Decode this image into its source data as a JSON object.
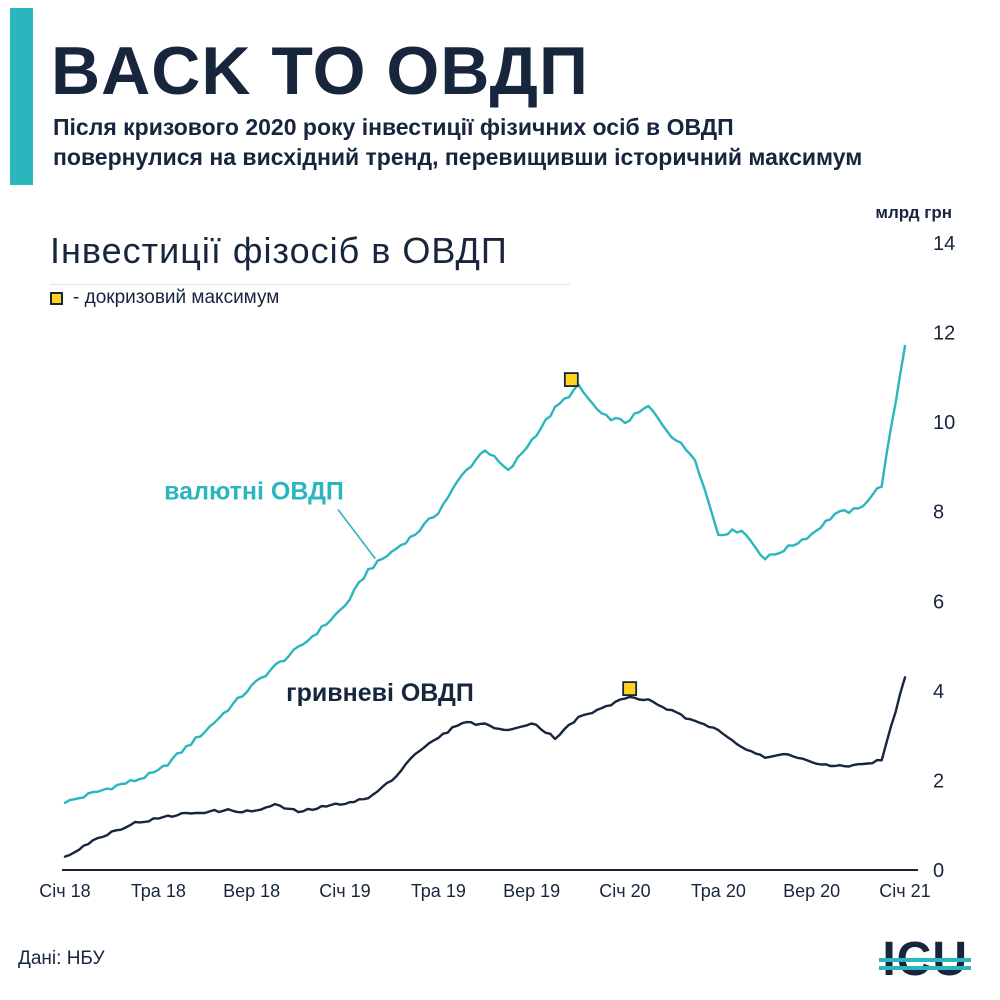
{
  "palette": {
    "ink": "#17253d",
    "teal": "#2bb6bd",
    "yellow": "#ffd51c",
    "underline": "#dfe3e8"
  },
  "header": {
    "title": "BACK TO ОВДП",
    "subtitle_line1": "Після кризового 2020 року інвестиції фізичних осіб в ОВДП",
    "subtitle_line2": "повернулися на висхідний тренд, перевищивши історичний максимум"
  },
  "chart_header": {
    "title": "Інвестиції фізосіб в ОВДП",
    "unit_label": "млрд грн",
    "legend_text": "- докризовий максимум"
  },
  "footer": {
    "source": "Дані: НБУ",
    "logo_text": "ICU"
  },
  "chart_data": {
    "type": "line",
    "title": "Інвестиції фізосіб в ОВДП",
    "ylabel": "млрд грн",
    "ylim": [
      0,
      14
    ],
    "yticks": [
      0,
      2,
      4,
      6,
      8,
      10,
      12,
      14
    ],
    "grid": false,
    "legend_position": "top-left",
    "x_axis": {
      "months_total": 36,
      "tick_months": [
        0,
        4,
        8,
        12,
        16,
        20,
        24,
        28,
        32,
        36
      ],
      "tick_labels": [
        "Січ 18",
        "Тра 18",
        "Вер 18",
        "Січ 19",
        "Тра 19",
        "Вер 19",
        "Січ 20",
        "Тра 20",
        "Вер 20",
        "Січ 21"
      ]
    },
    "series": [
      {
        "name": "валютні ОВДП",
        "color": "#2bb6bd",
        "months": [
          0,
          1,
          2,
          3,
          4,
          5,
          6,
          7,
          8,
          9,
          10,
          11,
          12,
          13,
          14,
          15,
          16,
          17,
          18,
          19,
          20,
          21,
          22,
          23,
          24,
          25,
          26,
          27,
          28,
          29,
          30,
          31,
          32,
          33,
          34,
          35,
          36
        ],
        "values": [
          1.5,
          1.68,
          1.85,
          2.0,
          2.2,
          2.65,
          3.1,
          3.6,
          4.1,
          4.55,
          4.95,
          5.4,
          5.9,
          6.7,
          7.1,
          7.5,
          8.0,
          8.8,
          9.4,
          8.9,
          9.6,
          10.3,
          10.8,
          10.15,
          10.0,
          10.35,
          9.7,
          9.2,
          7.5,
          7.6,
          6.95,
          7.2,
          7.5,
          7.95,
          8.05,
          8.6,
          11.7
        ]
      },
      {
        "name": "гривневі ОВДП",
        "color": "#17253d",
        "months": [
          0,
          1,
          2,
          3,
          4,
          5,
          6,
          7,
          8,
          9,
          10,
          11,
          12,
          13,
          14,
          15,
          16,
          17,
          18,
          19,
          20,
          21,
          22,
          23,
          24,
          25,
          26,
          27,
          28,
          29,
          30,
          31,
          32,
          33,
          34,
          35,
          36
        ],
        "values": [
          0.3,
          0.6,
          0.85,
          1.05,
          1.15,
          1.25,
          1.3,
          1.33,
          1.3,
          1.45,
          1.3,
          1.4,
          1.5,
          1.6,
          2.0,
          2.6,
          2.95,
          3.3,
          3.25,
          3.1,
          3.3,
          2.95,
          3.4,
          3.6,
          3.85,
          3.8,
          3.55,
          3.3,
          3.15,
          2.75,
          2.5,
          2.6,
          2.4,
          2.3,
          2.35,
          2.45,
          4.3
        ]
      }
    ],
    "markers": [
      {
        "label": "докризовий максимум",
        "series": "валютні ОВДП",
        "month": 21.7,
        "value": 10.95
      },
      {
        "label": "докризовий максимум",
        "series": "гривневі ОВДП",
        "month": 24.2,
        "value": 4.05
      }
    ],
    "annotations": [
      {
        "text": "валютні ОВДП",
        "color": "#2bb6bd",
        "month": 8.1,
        "value": 8.45,
        "pointer": {
          "m1": 11.7,
          "v1": 8.05,
          "m2": 13.3,
          "v2": 6.95
        }
      },
      {
        "text": "гривневі ОВДП",
        "color": "#17253d",
        "month": 13.5,
        "value": 3.95
      }
    ]
  }
}
